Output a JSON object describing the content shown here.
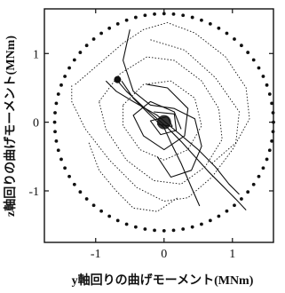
{
  "chart_data": {
    "type": "line",
    "xlabel": "y軸回りの曲げモーメント(MNm)",
    "ylabel": "z軸回りの曲げモーメント(MNm)",
    "xlim": [
      -1.75,
      1.6
    ],
    "ylim": [
      -1.75,
      1.65
    ],
    "x_ticks": [
      "-1",
      "0",
      "1"
    ],
    "y_ticks": [
      "1",
      "0",
      "-1"
    ],
    "x_tick_values": [
      -1,
      0,
      1
    ],
    "y_tick_values": [
      1,
      0,
      -1
    ],
    "grid": false,
    "series": [
      {
        "style": "dotted-markers",
        "x": [
          0.0,
          0.51,
          0.97,
          1.34,
          1.56,
          1.62,
          1.51,
          1.25,
          0.87,
          0.41,
          -0.08,
          -0.57,
          -1.01,
          -1.35,
          -1.55,
          -1.6,
          -1.49,
          -1.23,
          -0.85,
          -0.39,
          0.0
        ],
        "y": [
          1.58,
          1.5,
          1.28,
          0.93,
          0.49,
          0.0,
          -0.49,
          -0.93,
          -1.28,
          -1.5,
          -1.58,
          -1.5,
          -1.28,
          -0.93,
          -0.49,
          0.0,
          0.49,
          0.93,
          1.28,
          1.5,
          1.58
        ]
      },
      {
        "style": "solid",
        "x": [
          -0.72,
          -0.55,
          -0.3,
          -0.1,
          0.05,
          0.25,
          0.45,
          0.65,
          0.85,
          1.05,
          1.2
        ],
        "y": [
          0.65,
          0.45,
          0.22,
          0.05,
          -0.08,
          -0.28,
          -0.5,
          -0.72,
          -0.92,
          -1.12,
          -1.28
        ]
      },
      {
        "style": "solid",
        "x": [
          -0.62,
          -0.45,
          -0.2,
          0.0,
          0.1,
          0.25,
          0.4,
          0.52
        ],
        "y": [
          0.6,
          0.35,
          0.1,
          -0.08,
          -0.3,
          -0.6,
          -0.95,
          -1.22
        ]
      },
      {
        "style": "solid",
        "x": [
          -0.5,
          -0.6,
          -0.45,
          -0.2,
          0.15,
          0.45,
          0.55,
          0.4,
          0.1,
          -0.1
        ],
        "y": [
          1.35,
          0.9,
          0.45,
          0.25,
          0.2,
          0.05,
          -0.35,
          -0.7,
          -0.8,
          -0.5
        ]
      },
      {
        "style": "solid",
        "x": [
          -0.85,
          -0.7,
          -0.45,
          -0.1,
          0.2,
          0.5,
          0.75,
          0.95,
          1.1
        ],
        "y": [
          0.6,
          0.45,
          0.3,
          0.1,
          -0.15,
          -0.4,
          -0.65,
          -0.9,
          -1.05
        ]
      },
      {
        "style": "solid",
        "x": [
          -0.25,
          0.05,
          0.35,
          0.3,
          0.0,
          -0.3,
          -0.45,
          -0.2,
          0.15,
          0.25
        ],
        "y": [
          0.55,
          0.5,
          0.2,
          -0.2,
          -0.4,
          -0.2,
          0.1,
          0.3,
          0.15,
          -0.1
        ]
      },
      {
        "style": "solid",
        "x": [
          -0.15,
          0.15,
          0.18,
          -0.05,
          -0.2,
          0.05,
          0.12,
          -0.1
        ],
        "y": [
          0.15,
          0.12,
          -0.12,
          -0.18,
          0.02,
          0.08,
          -0.06,
          -0.03
        ]
      },
      {
        "style": "dotted",
        "x": [
          -1.3,
          -0.95,
          -0.6,
          -0.3,
          0.05,
          0.45,
          0.9,
          1.2,
          1.25,
          1.0,
          0.7,
          0.35,
          0.0,
          -0.4,
          -0.8,
          -1.15,
          -1.35,
          -1.35
        ],
        "y": [
          0.55,
          0.85,
          1.15,
          1.35,
          1.45,
          1.3,
          0.95,
          0.5,
          0.05,
          -0.4,
          -0.8,
          -1.1,
          -1.15,
          -0.95,
          -0.55,
          -0.1,
          0.3,
          0.55
        ]
      },
      {
        "style": "dotted",
        "x": [
          -0.95,
          -0.65,
          -0.25,
          0.15,
          0.55,
          0.8,
          0.85,
          0.6,
          0.25,
          -0.15,
          -0.55,
          -0.85,
          -0.95
        ],
        "y": [
          0.3,
          0.7,
          0.95,
          0.9,
          0.6,
          0.2,
          -0.25,
          -0.65,
          -0.9,
          -0.85,
          -0.55,
          -0.1,
          0.3
        ]
      },
      {
        "style": "dotted",
        "x": [
          -0.6,
          -0.3,
          0.1,
          0.45,
          0.55,
          0.35,
          0.0,
          -0.35,
          -0.6,
          -0.6
        ],
        "y": [
          0.25,
          0.55,
          0.6,
          0.35,
          -0.05,
          -0.4,
          -0.55,
          -0.4,
          -0.05,
          0.25
        ]
      },
      {
        "style": "dotted",
        "x": [
          -0.2,
          0.3,
          0.75,
          1.1,
          1.05,
          0.7
        ],
        "y": [
          1.2,
          1.05,
          0.65,
          0.15,
          -0.3,
          -0.6
        ]
      },
      {
        "style": "dotted",
        "x": [
          -1.1,
          -0.95,
          -0.7,
          -0.45,
          -0.1,
          0.2
        ],
        "y": [
          -0.3,
          -0.7,
          -1.0,
          -1.25,
          -1.3,
          -1.1
        ]
      }
    ]
  }
}
